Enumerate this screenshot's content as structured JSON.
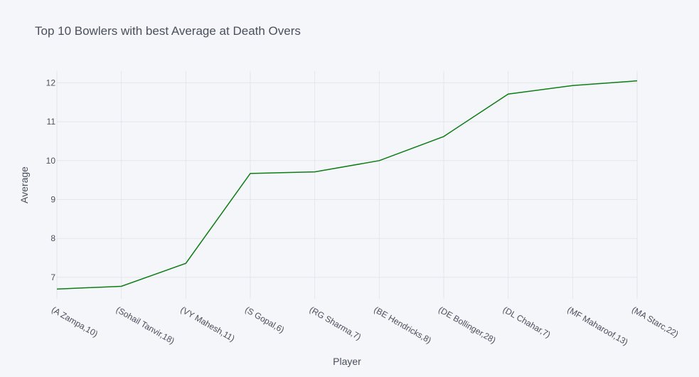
{
  "chart_data": {
    "type": "line",
    "title": "Top 10 Bowlers with best Average at Death Overs",
    "xlabel": "Player",
    "ylabel": "Average",
    "categories": [
      "(A Zampa,10)",
      "(Sohail Tanvir,18)",
      "(VY Mahesh,11)",
      "(S Gopal,6)",
      "(RG Sharma,7)",
      "(BE Hendricks,8)",
      "(DE Bollinger,28)",
      "(DL Chahar,7)",
      "(MF Maharoof,13)",
      "(MA Starc,22)"
    ],
    "series": [
      {
        "values": [
          6.7,
          6.77,
          7.36,
          9.67,
          9.71,
          10.0,
          10.62,
          11.71,
          11.93,
          12.05
        ]
      }
    ],
    "yticks": [
      7,
      8,
      9,
      10,
      11,
      12
    ],
    "ylim": [
      6.45,
      12.3
    ],
    "grid": true,
    "line_color": "#0e7d16",
    "grid_color": "#e4e6ec",
    "background": "#f5f6fa"
  }
}
